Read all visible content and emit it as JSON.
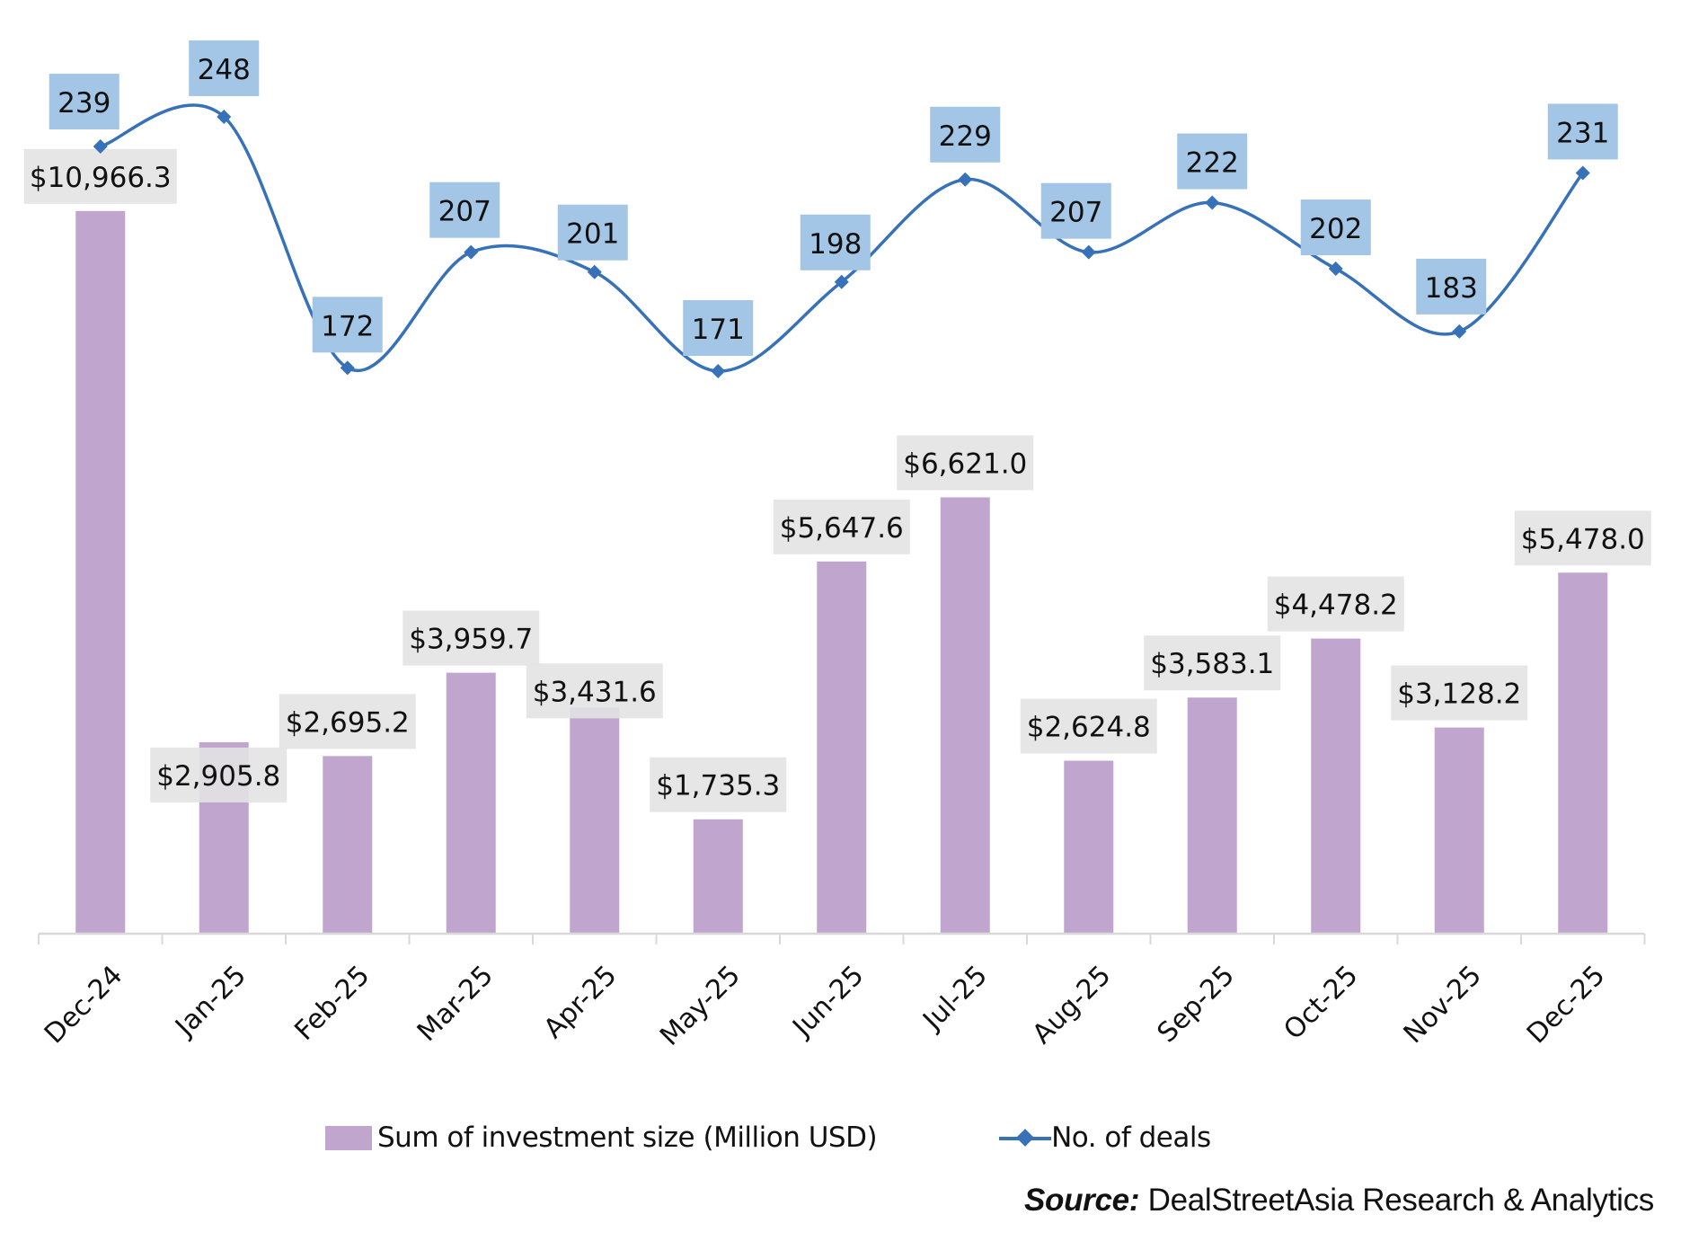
{
  "chart_data": {
    "type": "bar",
    "combo": "bar + line (dual axis)",
    "title": "",
    "xlabel": "",
    "ylabel": "",
    "categories": [
      "Dec-24",
      "Jan-25",
      "Feb-25",
      "Mar-25",
      "Apr-25",
      "May-25",
      "Jun-25",
      "Jul-25",
      "Aug-25",
      "Sep-25",
      "Oct-25",
      "Nov-25",
      "Dec-25"
    ],
    "series": [
      {
        "name": "Sum of investment size (Million USD)",
        "type": "bar",
        "axis": "primary",
        "color": "#C0A6CF",
        "values": [
          10966.3,
          2905.8,
          2695.2,
          3959.7,
          3431.6,
          1735.3,
          5647.6,
          6621.0,
          2624.8,
          3583.1,
          4478.2,
          3128.2,
          5478.0
        ],
        "labels": [
          "$10,966.3",
          "$2,905.8",
          "$2,695.2",
          "$3,959.7",
          "$3,431.6",
          "$1,735.3",
          "$5,647.6",
          "$6,621.0",
          "$2,624.8",
          "$3,583.1",
          "$4,478.2",
          "$3,128.2",
          "$5,478.0"
        ]
      },
      {
        "name": "No. of deals",
        "type": "line",
        "axis": "secondary",
        "smooth": true,
        "marker": "diamond",
        "color": "#3772B8",
        "values": [
          239,
          248,
          172,
          207,
          201,
          171,
          198,
          229,
          207,
          222,
          202,
          183,
          231
        ],
        "labels": [
          "239",
          "248",
          "172",
          "207",
          "201",
          "171",
          "198",
          "229",
          "207",
          "222",
          "202",
          "183",
          "231"
        ]
      }
    ],
    "ylim": [
      0,
      12000
    ],
    "y2lim": [
      0,
      285
    ],
    "grid": false,
    "y_axis_visible": false,
    "x_tick_rotation": "-45 degrees",
    "legend_position": "bottom",
    "label_colors": {
      "bar_label_bg": "#E3E3E3",
      "line_label_bg": "#A4C6E6"
    }
  },
  "legend": {
    "bar_label": "Sum of investment size (Million USD)",
    "line_label": "No. of deals"
  },
  "source": {
    "label": "Source:",
    "text": " DealStreetAsia Research & Analytics"
  }
}
